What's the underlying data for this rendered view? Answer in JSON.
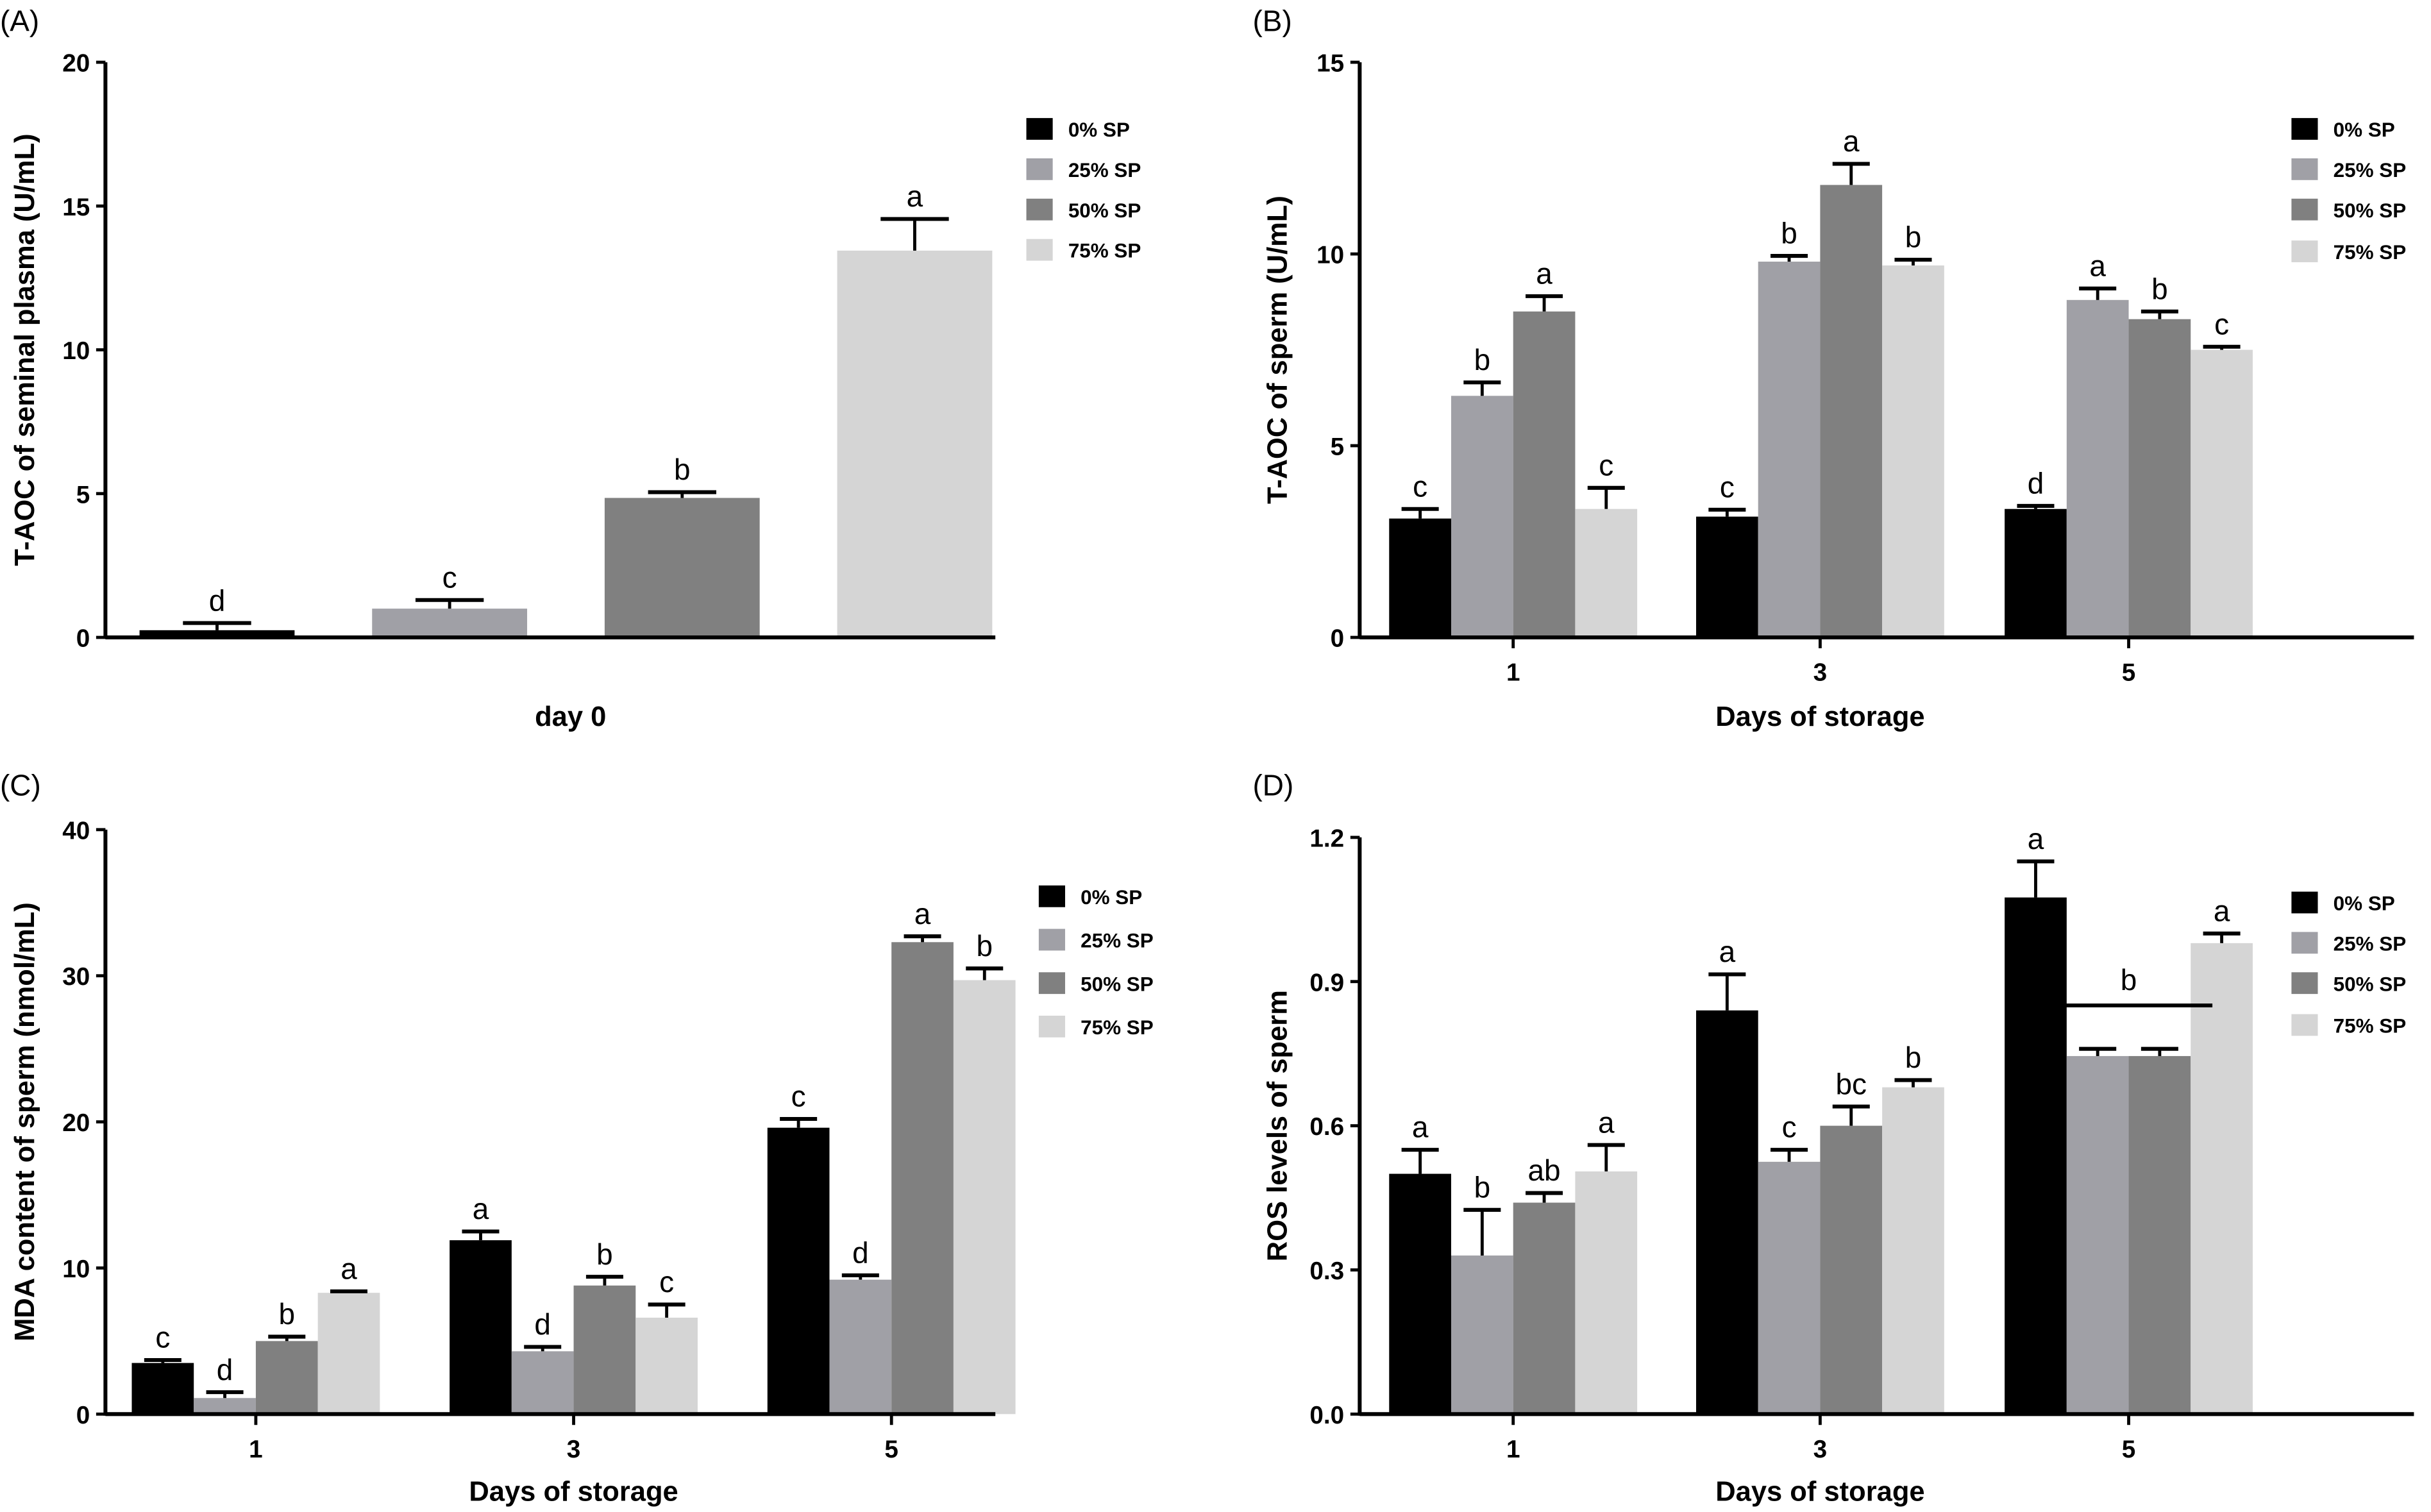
{
  "colors": {
    "0% SP": "#000000",
    "25% SP": "#a0a0a6",
    "50% SP": "#808080",
    "75% SP": "#d5d5d5"
  },
  "chart_data": [
    {
      "panel": "(A)",
      "type": "bar",
      "categories": [
        "day 0"
      ],
      "xlabel": "day 0",
      "ylabel": "T-AOC of seminal plasma (U/mL)",
      "ylim": [
        0,
        20
      ],
      "yticks": [
        "0",
        "5",
        "10",
        "15",
        "20"
      ],
      "legend": [
        "0% SP",
        "25% SP",
        "50% SP",
        "75% SP"
      ],
      "legend_position": "right",
      "series": [
        {
          "name": "0% SP",
          "values": [
            0.25
          ],
          "errors": [
            0.25
          ],
          "letters": [
            "d"
          ]
        },
        {
          "name": "25% SP",
          "values": [
            1.0
          ],
          "errors": [
            0.3
          ],
          "letters": [
            "c"
          ]
        },
        {
          "name": "50% SP",
          "values": [
            4.85
          ],
          "errors": [
            0.2
          ],
          "letters": [
            "b"
          ]
        },
        {
          "name": "75% SP",
          "values": [
            13.45
          ],
          "errors": [
            1.1
          ],
          "letters": [
            "a"
          ]
        }
      ]
    },
    {
      "panel": "(B)",
      "type": "bar",
      "categories": [
        "1",
        "3",
        "5"
      ],
      "xlabel": "Days of storage",
      "ylabel": "T-AOC of sperm  (U/mL)",
      "ylim": [
        0,
        15
      ],
      "yticks": [
        "0",
        "5",
        "10",
        "15"
      ],
      "legend": [
        "0% SP",
        "25% SP",
        "50% SP",
        "75% SP"
      ],
      "legend_position": "right",
      "series": [
        {
          "name": "0% SP",
          "values": [
            3.1,
            3.15,
            3.35
          ],
          "errors": [
            0.25,
            0.18,
            0.08
          ],
          "letters": [
            "c",
            "c",
            "d"
          ]
        },
        {
          "name": "25% SP",
          "values": [
            6.3,
            9.8,
            8.8
          ],
          "errors": [
            0.35,
            0.15,
            0.3
          ],
          "letters": [
            "b",
            "b",
            "a"
          ]
        },
        {
          "name": "50% SP",
          "values": [
            8.5,
            11.8,
            8.3
          ],
          "errors": [
            0.4,
            0.55,
            0.2
          ],
          "letters": [
            "a",
            "a",
            "b"
          ]
        },
        {
          "name": "75% SP",
          "values": [
            3.35,
            9.7,
            7.5
          ],
          "errors": [
            0.55,
            0.15,
            0.08
          ],
          "letters": [
            "c",
            "b",
            "c"
          ]
        }
      ]
    },
    {
      "panel": "(C)",
      "type": "bar",
      "categories": [
        "1",
        "3",
        "5"
      ],
      "xlabel": "Days of storage",
      "ylabel": "MDA content of sperm  (nmol/mL)",
      "ylim": [
        0,
        40
      ],
      "yticks": [
        "0",
        "10",
        "20",
        "30",
        "40"
      ],
      "legend": [
        "0% SP",
        "25% SP",
        "50% SP",
        "75% SP"
      ],
      "legend_position": "right",
      "series": [
        {
          "name": "0% SP",
          "values": [
            3.5,
            11.9,
            19.6
          ],
          "errors": [
            0.2,
            0.6,
            0.6
          ],
          "letters": [
            "c",
            "a",
            "c"
          ]
        },
        {
          "name": "25% SP",
          "values": [
            1.1,
            4.3,
            9.2
          ],
          "errors": [
            0.4,
            0.3,
            0.3
          ],
          "letters": [
            "d",
            "d",
            "d"
          ]
        },
        {
          "name": "50% SP",
          "values": [
            5.0,
            8.8,
            32.3
          ],
          "errors": [
            0.3,
            0.6,
            0.4
          ],
          "letters": [
            "b",
            "b",
            "a"
          ]
        },
        {
          "name": "75% SP",
          "values": [
            8.3,
            6.6,
            29.7
          ],
          "errors": [
            0.1,
            0.9,
            0.8
          ],
          "letters": [
            "a",
            "c",
            "b"
          ]
        }
      ]
    },
    {
      "panel": "(D)",
      "type": "bar",
      "categories": [
        "1",
        "3",
        "5"
      ],
      "xlabel": "Days of storage",
      "ylabel": "ROS levels of sperm",
      "ylim": [
        0,
        1.2
      ],
      "yticks": [
        "0.0",
        "0.3",
        "0.6",
        "0.9",
        "1.2"
      ],
      "legend": [
        "0% SP",
        "25% SP",
        "50% SP",
        "75% SP"
      ],
      "legend_position": "right",
      "series": [
        {
          "name": "0% SP",
          "values": [
            0.5,
            0.84,
            1.075
          ],
          "errors": [
            0.05,
            0.075,
            0.075
          ],
          "letters": [
            "a",
            "a",
            "a"
          ]
        },
        {
          "name": "25% SP",
          "values": [
            0.33,
            0.525,
            0.745
          ],
          "errors": [
            0.095,
            0.025,
            0.015
          ],
          "letters": [
            "b",
            "c",
            ""
          ]
        },
        {
          "name": "50% SP",
          "values": [
            0.44,
            0.6,
            0.745
          ],
          "errors": [
            0.02,
            0.04,
            0.015
          ],
          "letters": [
            "ab",
            "bc",
            ""
          ]
        },
        {
          "name": "75% SP",
          "values": [
            0.505,
            0.68,
            0.98
          ],
          "errors": [
            0.055,
            0.015,
            0.02
          ],
          "letters": [
            "a",
            "b",
            "a"
          ]
        }
      ],
      "group_bracket": {
        "category": "5",
        "series": [
          "25% SP",
          "50% SP"
        ],
        "letter": "b"
      }
    }
  ]
}
